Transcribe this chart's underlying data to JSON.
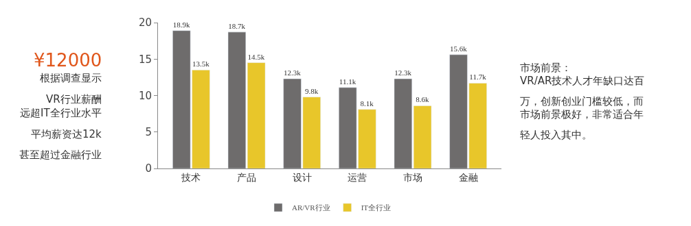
{
  "chart_data": {
    "type": "bar",
    "categories": [
      "技术",
      "产品",
      "设计",
      "运营",
      "市场",
      "金融"
    ],
    "series": [
      {
        "name": "AR/VR行业",
        "color": "#6e6c6c",
        "values": [
          18.9,
          18.7,
          12.3,
          11.1,
          12.3,
          15.6
        ],
        "value_labels": [
          "18.9k",
          "18.7k",
          "12.3k",
          "11.1k",
          "12.3k",
          "15.6k"
        ]
      },
      {
        "name": "IT全行业",
        "color": "#e8c62a",
        "values": [
          13.5,
          14.5,
          9.8,
          8.1,
          8.6,
          11.7
        ],
        "value_labels": [
          "13.5k",
          "14.5k",
          "9.8k",
          "8.1k",
          "8.6k",
          "11.7k"
        ]
      }
    ],
    "ylim": [
      0,
      20
    ],
    "yticks": [
      0,
      5,
      10,
      15,
      20
    ],
    "legend": "bottom",
    "annotations": [
      "¥12000",
      "根据调查显示",
      "VR行业薪酬",
      "远超IT全行业水平",
      "平均薪资达12k",
      "甚至超过金融行业",
      "市场前景：",
      "VR/AR技术人才年缺口达百",
      "万，创新创业门槛较低，而",
      "市场前景极好，非常适合年",
      "轻人投入其中。"
    ]
  }
}
